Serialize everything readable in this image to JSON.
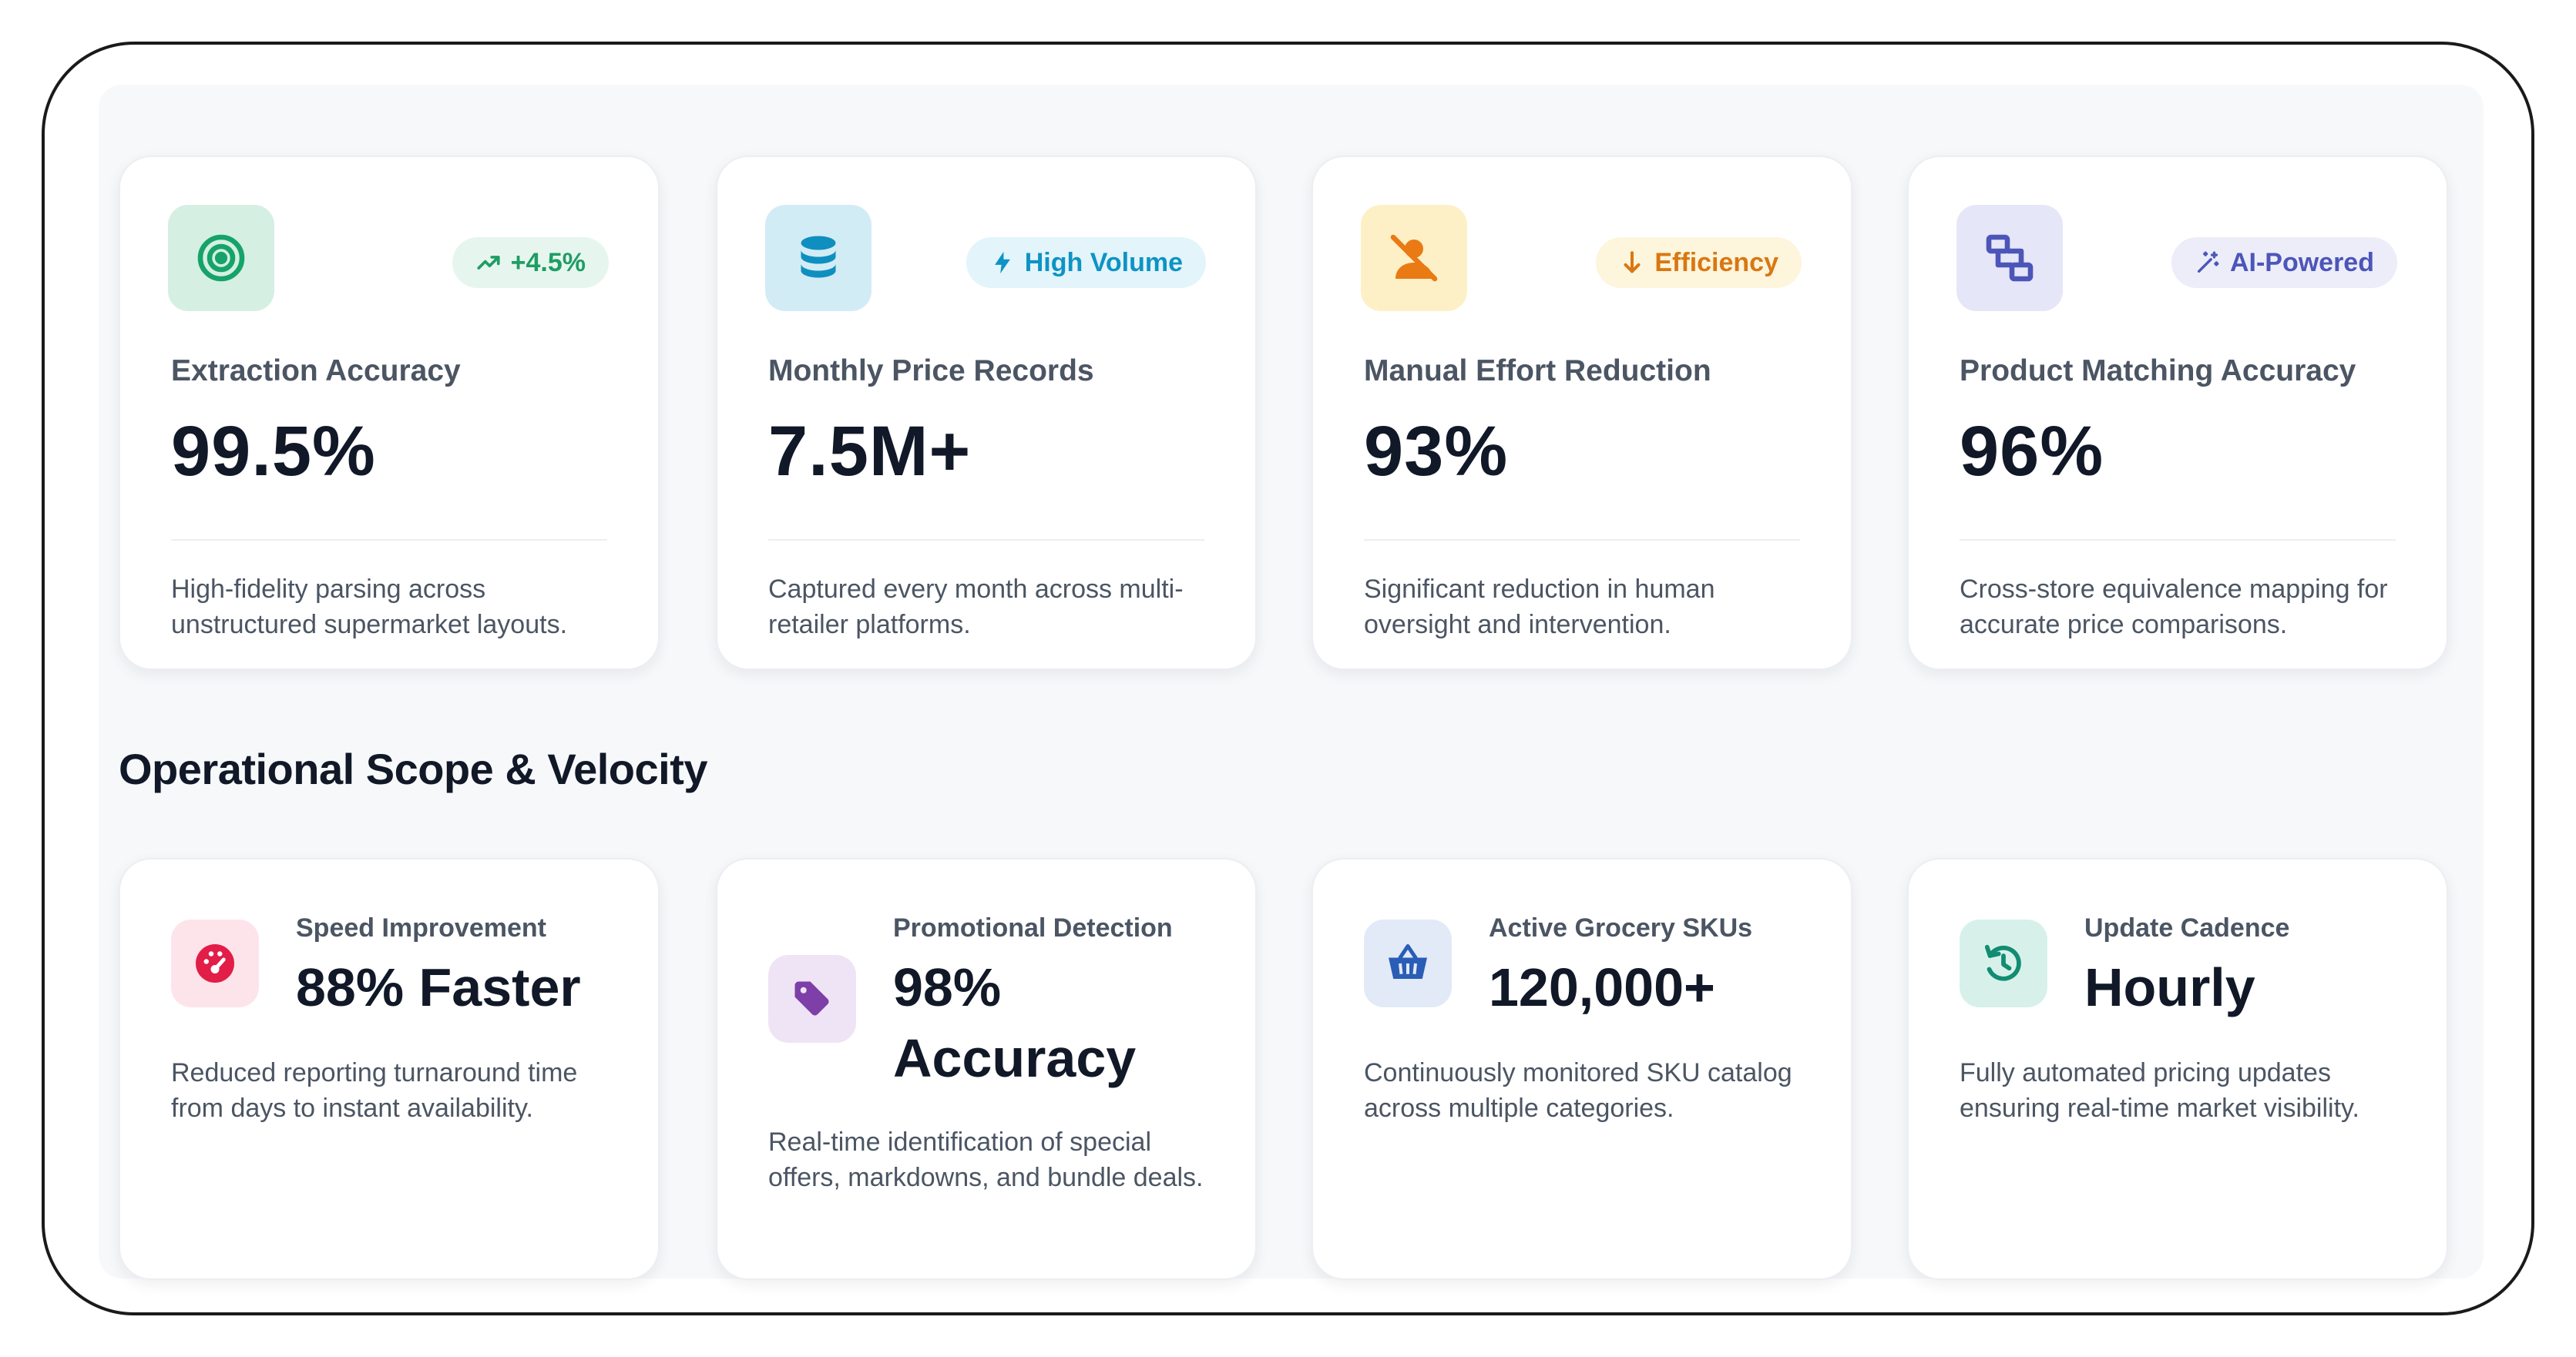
{
  "metrics": [
    {
      "icon": "target-icon",
      "badge": "+4.5%",
      "badge_icon": "trend-up-icon",
      "label": "Extraction Accuracy",
      "value": "99.5%",
      "description": "High-fidelity parsing across unstructured supermarket layouts.",
      "colors": {
        "icon_bg": "#d6efe3",
        "icon_fg": "#16a36a",
        "badge_bg": "#e6f6ee",
        "badge_fg": "#1f9d64"
      }
    },
    {
      "icon": "database-icon",
      "badge": "High Volume",
      "badge_icon": "lightning-icon",
      "label": "Monthly Price Records",
      "value": "7.5M+",
      "description": "Captured every month across multi-retailer platforms.",
      "colors": {
        "icon_bg": "#d2ecf6",
        "icon_fg": "#0f8fc0",
        "badge_bg": "#e3f4fb",
        "badge_fg": "#0e93c4"
      }
    },
    {
      "icon": "user-off-icon",
      "badge": "Efficiency",
      "badge_icon": "arrow-down-icon",
      "label": "Manual Effort Reduction",
      "value": "93%",
      "description": "Significant reduction in human oversight and intervention.",
      "colors": {
        "icon_bg": "#fdf0c6",
        "icon_fg": "#ea7a14",
        "badge_bg": "#fdf5dc",
        "badge_fg": "#d97712"
      }
    },
    {
      "icon": "match-icon",
      "badge": "AI-Powered",
      "badge_icon": "magic-wand-icon",
      "label": "Product Matching Accuracy",
      "value": "96%",
      "description": "Cross-store equivalence mapping for accurate price comparisons.",
      "colors": {
        "icon_bg": "#e5e6f7",
        "icon_fg": "#4c55b8",
        "badge_bg": "#ecedf9",
        "badge_fg": "#4c55b8"
      }
    }
  ],
  "section_title": "Operational Scope & Velocity",
  "scope": [
    {
      "icon": "speedometer-icon",
      "label": "Speed Improvement",
      "value": "88% Faster",
      "description": "Reduced reporting turnaround time from days to instant availability.",
      "colors": {
        "icon_bg": "#fde4ea",
        "icon_fg": "#e11d48"
      }
    },
    {
      "icon": "tag-icon",
      "label": "Promotional Detection",
      "value": "98% Accuracy",
      "description": "Real-time identification of special offers, markdowns, and bundle deals.",
      "colors": {
        "icon_bg": "#efe4f5",
        "icon_fg": "#7e3fa8"
      }
    },
    {
      "icon": "basket-icon",
      "label": "Active Grocery SKUs",
      "value": "120,000+",
      "description": "Continuously monitored SKU catalog across multiple categories.",
      "colors": {
        "icon_bg": "#e2eaf8",
        "icon_fg": "#2a5db5"
      }
    },
    {
      "icon": "history-icon",
      "label": "Update Cadence",
      "value": "Hourly",
      "description": "Fully automated pricing updates ensuring real-time market visibility.",
      "colors": {
        "icon_bg": "#d7f1ea",
        "icon_fg": "#128c73"
      }
    }
  ]
}
